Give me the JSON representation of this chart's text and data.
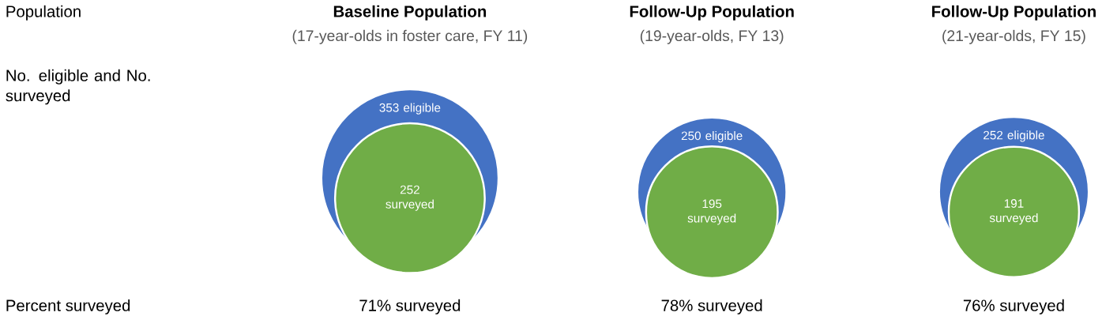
{
  "chart_data": {
    "type": "other",
    "categories": [
      "Baseline Population",
      "Follow-Up Population",
      "Follow-Up Population"
    ],
    "series": [
      {
        "color": "#4472c4",
        "values": [
          353,
          250,
          252
        ],
        "value_labels": [
          "353 eligible",
          "250 eligible",
          "252 eligible"
        ]
      },
      {
        "color": "#70ad47",
        "values": [
          252,
          195,
          191
        ],
        "value_labels": [
          "252 surveyed",
          "195 surveyed",
          "191 surveyed"
        ]
      }
    ],
    "annotations": [
      "Population",
      "No. eligible and No. surveyed",
      "Percent surveyed",
      "(17-year-olds in foster care, FY 11)",
      "(19-year-olds, FY 13)",
      "(21-year-olds, FY 15)",
      "71% surveyed",
      "78% surveyed",
      "76% surveyed"
    ]
  }
}
